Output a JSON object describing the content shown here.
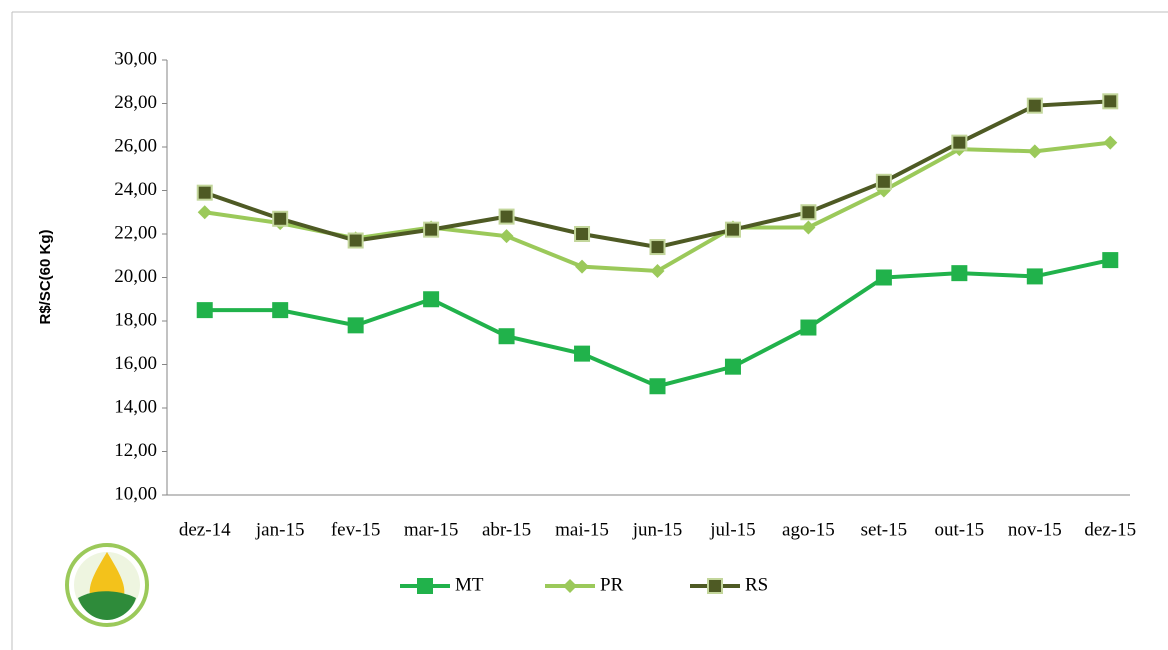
{
  "chart_data": {
    "type": "line",
    "y_label": "R$/SC(60 Kg)",
    "categories": [
      "dez-14",
      "jan-15",
      "fev-15",
      "mar-15",
      "abr-15",
      "mai-15",
      "jun-15",
      "jul-15",
      "ago-15",
      "set-15",
      "out-15",
      "nov-15",
      "dez-15"
    ],
    "series": [
      {
        "name": "MT",
        "color": "#21b24b",
        "values": [
          18.5,
          18.5,
          17.8,
          19.0,
          17.3,
          16.5,
          15.0,
          15.9,
          17.7,
          20.0,
          20.2,
          20.05,
          20.8
        ]
      },
      {
        "name": "PR",
        "color": "#9bc95a",
        "values": [
          23.0,
          22.5,
          21.8,
          22.3,
          21.9,
          20.5,
          20.3,
          22.3,
          22.3,
          24.0,
          25.9,
          25.8,
          26.2
        ]
      },
      {
        "name": "RS",
        "color": "#4e5a24",
        "values": [
          23.9,
          22.7,
          21.7,
          22.2,
          22.8,
          22.0,
          21.4,
          22.2,
          23.0,
          24.4,
          26.2,
          27.9,
          28.1
        ]
      }
    ],
    "ylim": [
      10,
      30
    ],
    "yticks": [
      {
        "value": 10,
        "label": "10,00"
      },
      {
        "value": 12,
        "label": "12,00"
      },
      {
        "value": 14,
        "label": "14,00"
      },
      {
        "value": 16,
        "label": "16,00"
      },
      {
        "value": 18,
        "label": "18,00"
      },
      {
        "value": 20,
        "label": "20,00"
      },
      {
        "value": 22,
        "label": "22,00"
      },
      {
        "value": 24,
        "label": "24,00"
      },
      {
        "value": 26,
        "label": "26,00"
      },
      {
        "value": 28,
        "label": "28,00"
      },
      {
        "value": 30,
        "label": "30,00"
      }
    ],
    "legend": "bottom"
  }
}
